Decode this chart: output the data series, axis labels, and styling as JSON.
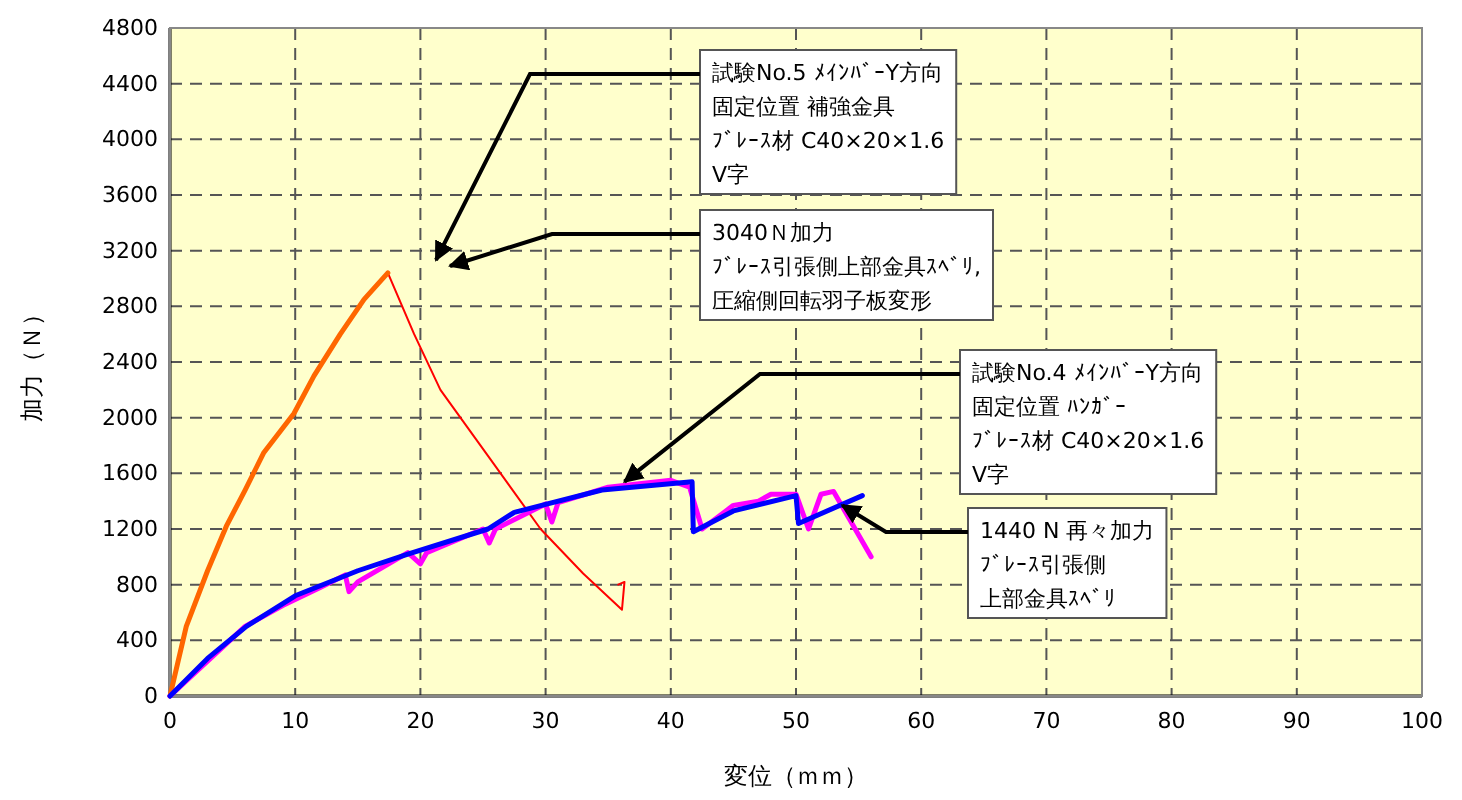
{
  "chart_data": {
    "type": "line",
    "xlabel": "変位（ｍｍ）",
    "ylabel": "加力（Ｎ）",
    "xlim": [
      0,
      100
    ],
    "xticks": [
      0,
      10,
      20,
      30,
      40,
      50,
      60,
      70,
      80,
      90,
      100
    ],
    "ylim": [
      0,
      4800
    ],
    "yticks": [
      0,
      400,
      800,
      1200,
      1600,
      2000,
      2400,
      2800,
      3200,
      3600,
      4000,
      4400,
      4800
    ],
    "grid": true,
    "marker": "none",
    "line_style": "solid",
    "series": [
      {
        "color": "#ff0000",
        "x": [
          17.4,
          19.5,
          21.6,
          25.6,
          29.6,
          33,
          36.1,
          36.3,
          35.8
        ],
        "values": [
          3040,
          2600,
          2200,
          1700,
          1200,
          880,
          620,
          820,
          800
        ]
      },
      {
        "color": "#ff6600",
        "x": [
          0,
          1.3,
          3,
          4.5,
          6,
          7.5,
          9.9,
          11.5,
          13.6,
          15.5,
          17.4
        ],
        "values": [
          0,
          500,
          900,
          1220,
          1480,
          1750,
          2030,
          2300,
          2600,
          2850,
          3040
        ]
      },
      {
        "color": "#ff00ff",
        "x": [
          0,
          3,
          6,
          9,
          12,
          14,
          14.3,
          15,
          19,
          20,
          20.5,
          25,
          25.5,
          26,
          30,
          30.5,
          31,
          35,
          40,
          41.5,
          42.5,
          45,
          47,
          48,
          50,
          51,
          52,
          53,
          56
        ],
        "values": [
          0,
          250,
          500,
          650,
          780,
          870,
          750,
          820,
          1030,
          950,
          1030,
          1200,
          1100,
          1200,
          1380,
          1250,
          1390,
          1500,
          1550,
          1500,
          1200,
          1370,
          1400,
          1450,
          1450,
          1200,
          1450,
          1470,
          1000
        ]
      },
      {
        "color": "#0000ff",
        "x": [
          0,
          3,
          6.1,
          10,
          15,
          19,
          25.4,
          27.5,
          34.5,
          41.7,
          41.8,
          45,
          50,
          50.2,
          55.3
        ],
        "values": [
          0,
          270,
          500,
          720,
          900,
          1020,
          1200,
          1320,
          1480,
          1540,
          1180,
          1330,
          1440,
          1240,
          1440
        ]
      }
    ],
    "annotations": [
      "試験No.5 ﾒｲﾝﾊﾞｰY方向固定位置 補強金具ﾌﾞﾚｰｽ材 C40×20×1.6V字",
      "3040Ｎ加力ﾌﾞﾚｰｽ引張側上部金具ｽﾍﾞﾘ,圧縮側回転羽子板変形",
      {
        "text": "試験No.4 ﾒｲﾝﾊﾞｰY方向固定位置 ﾊﾝｶﾞｰﾌﾞﾚｰｽ材 C40×20×1.6V字",
        "x": 36.3,
        "y": 1540
      },
      {
        "text": "1440 N 再々加力ﾌﾞﾚｰｽ引張側上部金具ｽﾍﾞﾘ",
        "x": 53.7,
        "y": 1370
      }
    ]
  }
}
